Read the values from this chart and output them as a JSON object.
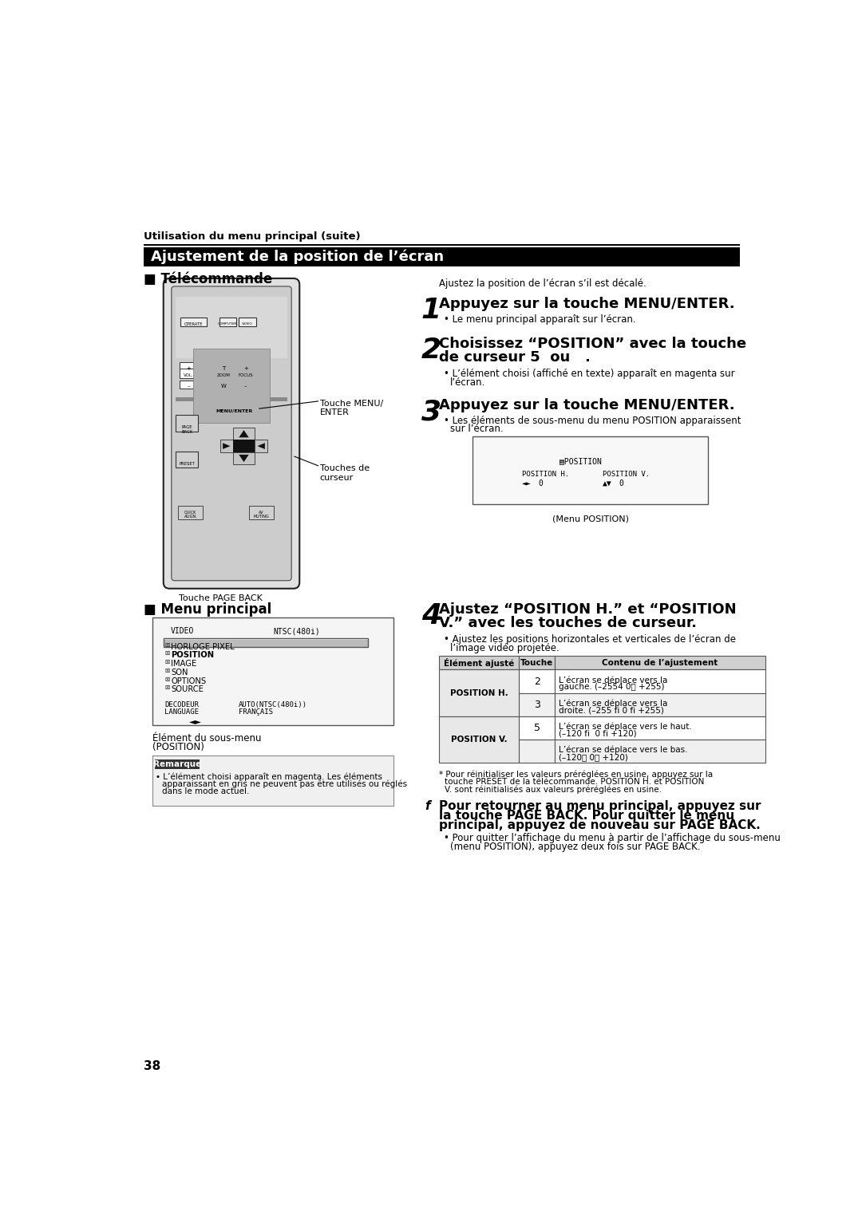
{
  "page_bg": "#ffffff",
  "top_label": "Utilisation du menu principal (suite)",
  "section_title": "Ajustement de la position de l’écran",
  "left_heading": "■ Télécommande",
  "right_intro": "Ajustez la position de l’écran s’il est décalé.",
  "step1_num": "1",
  "step1_text": "Appuyez sur la touche MENU/ENTER.",
  "step1_sub": "• Le menu principal apparaît sur l’écran.",
  "step2_num": "2",
  "step2_line1": "Choisissez “POSITION” avec la touche",
  "step2_line2": "de curseur 5  ou   .",
  "step2_sub": "• L’élément choisi (affiché en texte) apparaît en magenta sur",
  "step2_sub2": "l’écran.",
  "step3_num": "3",
  "step3_text": "Appuyez sur la touche MENU/ENTER.",
  "step3_sub": "• Les éléments de sous-menu du menu POSITION apparaissent",
  "step3_sub2": "sur l’écran.",
  "menu_caption": "(Menu POSITION)",
  "step4_num": "4",
  "step4_line1": "Ajustez “POSITION H.” et “POSITION",
  "step4_line2": "V.” avec les touches de curseur.",
  "step4_sub": "• Ajustez les positions horizontales et verticales de l’écran de",
  "step4_sub2": "l’image vidéo projetée.",
  "table_h0": "Élément ajusté",
  "table_h1": "Touche",
  "table_h2": "Contenu de l’ajustement",
  "table_r0_c2a": "L’écran se déplace vers la",
  "table_r0_c2b": "gauche. (–2554 0・ +255)",
  "table_r1_c2a": "L’écran se déplace vers la",
  "table_r1_c2b": "droite. (–255 fi 0 fi +255)",
  "table_r2_c2a": "L’écran se déplace vers le haut.",
  "table_r2_c2b": "(–120 fi  0 fi +120)",
  "table_r3_c2a": "L’écran se déplace vers le bas.",
  "table_r3_c2b": "(–120・ 0・ +120)",
  "note_line1": "* Pour réinitialiser les valeurs préréglées en usine, appuyez sur la",
  "note_line2": "touche PRESET de la télécommande. POSITION H. et POSITION",
  "note_line3": "V. sont réinitialisés aux valeurs préréglées en usine.",
  "stepf_pre": "f",
  "stepf_line1": "Pour retourner au menu principal, appuyez sur",
  "stepf_line2": "la touche PAGE BACK. Pour quitter le menu",
  "stepf_line3": "principal, appuyez de nouveau sur PAGE BACK.",
  "stepf_sub1": "• Pour quitter l’affichage du menu à partir de l’affichage du sous-menu",
  "stepf_sub2": "(menu POSITION), appuyez deux fois sur PAGE BACK.",
  "left_heading2": "■ Menu principal",
  "remarque_title": "Remarque",
  "rem_line1": "• L’élément choisi apparaît en magenta. Les éléments",
  "rem_line2": "apparaissant en gris ne peuvent pas être utilisés ou réglés",
  "rem_line3": "dans le mode actuel.",
  "page_number": "38",
  "label_menuenter": "Touche MENU/\nENTER",
  "label_curseur": "Touches de\ncurseur",
  "label_pageback": "Touche PAGE BACK",
  "label_element": "Élément du sous-menu\n(POSITION)"
}
